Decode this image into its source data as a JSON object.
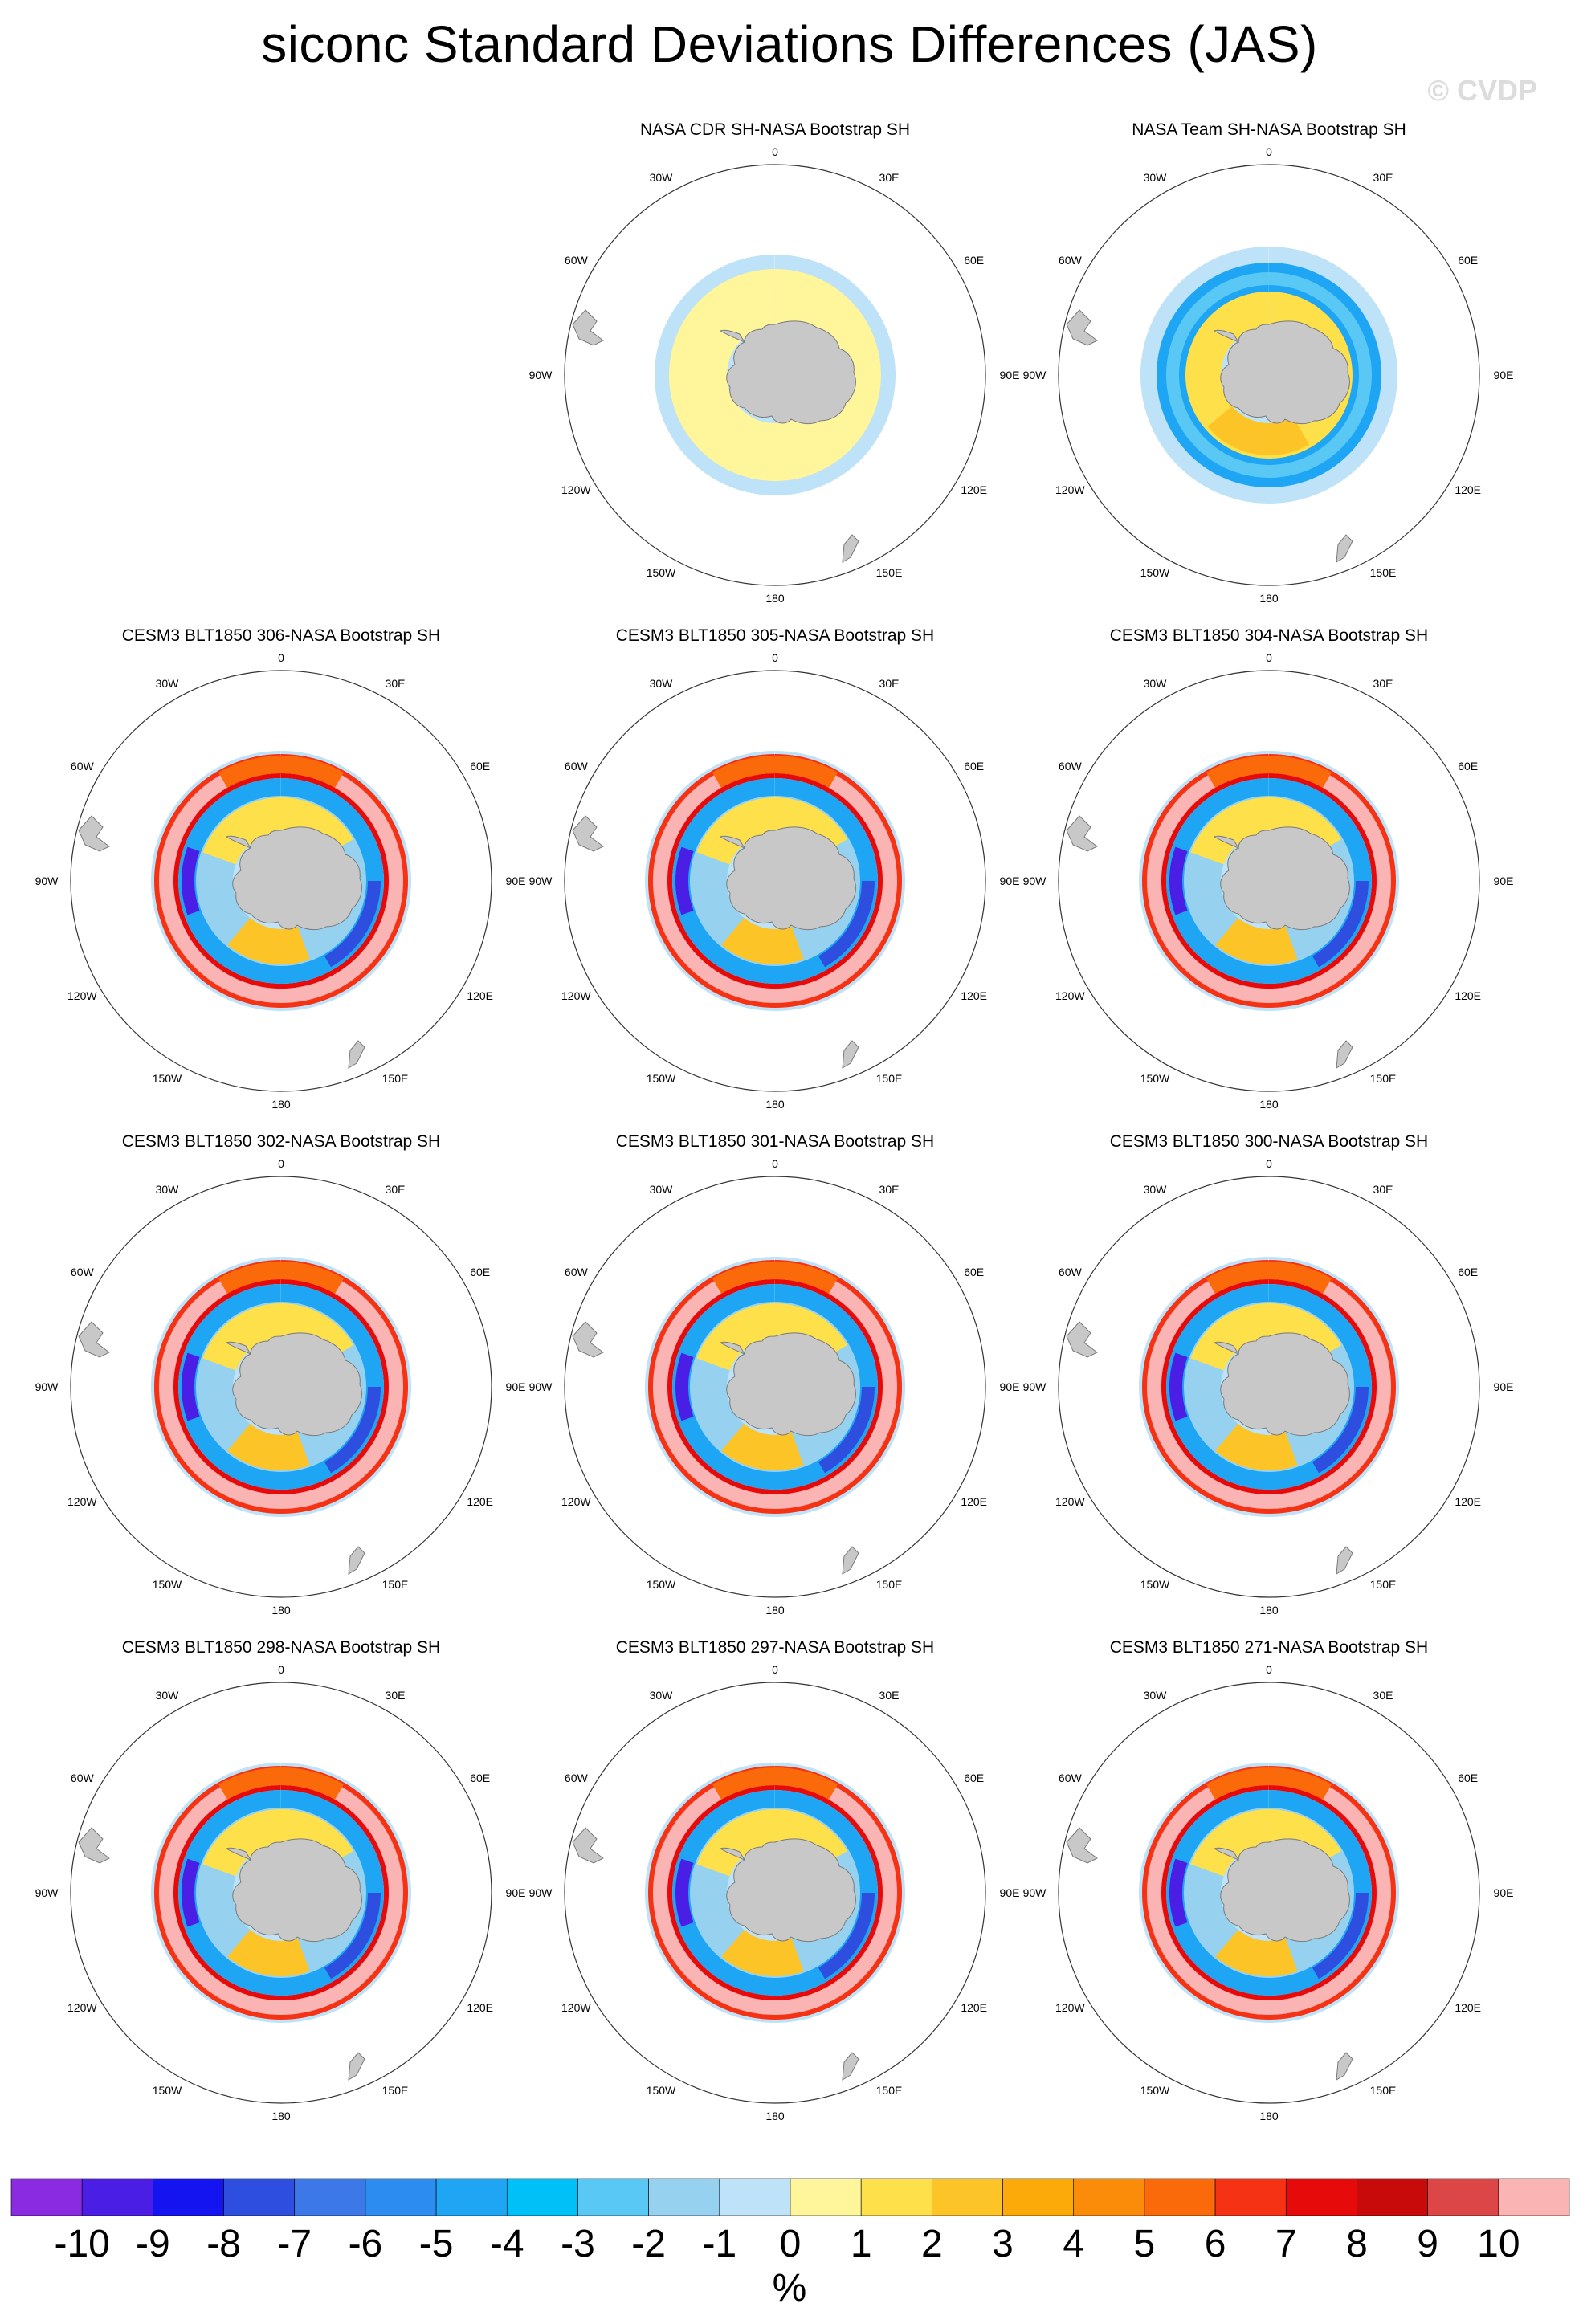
{
  "title": "siconc Standard Deviations Differences (JAS)",
  "watermark": "© CVDP",
  "longitude_labels": {
    "top": "0",
    "bottom": "180",
    "upper_left": "30W",
    "upper_right": "30E",
    "left_upper": "60W",
    "right_upper": "60E",
    "left": "90W",
    "right": "90E",
    "left_lower": "120W",
    "right_lower": "120E",
    "lower_left": "150W",
    "lower_right": "150E"
  },
  "panels": [
    {
      "title": "NASA CDR SH-NASA Bootstrap SH",
      "pattern": "cdr"
    },
    {
      "title": "NASA Team SH-NASA Bootstrap SH",
      "pattern": "team"
    },
    {
      "title": "CESM3 BLT1850 306-NASA Bootstrap SH",
      "pattern": "model"
    },
    {
      "title": "CESM3 BLT1850 305-NASA Bootstrap SH",
      "pattern": "model"
    },
    {
      "title": "CESM3 BLT1850 304-NASA Bootstrap SH",
      "pattern": "model"
    },
    {
      "title": "CESM3 BLT1850 302-NASA Bootstrap SH",
      "pattern": "model"
    },
    {
      "title": "CESM3 BLT1850 301-NASA Bootstrap SH",
      "pattern": "model"
    },
    {
      "title": "CESM3 BLT1850 300-NASA Bootstrap SH",
      "pattern": "model"
    },
    {
      "title": "CESM3 BLT1850 298-NASA Bootstrap SH",
      "pattern": "model"
    },
    {
      "title": "CESM3 BLT1850 297-NASA Bootstrap SH",
      "pattern": "model"
    },
    {
      "title": "CESM3 BLT1850 271-NASA Bootstrap SH",
      "pattern": "model"
    }
  ],
  "colorbar": {
    "unit": "%",
    "tick_labels": [
      "-10",
      "-9",
      "-8",
      "-7",
      "-6",
      "-5",
      "-4",
      "-3",
      "-2",
      "-1",
      "0",
      "1",
      "2",
      "3",
      "4",
      "5",
      "6",
      "7",
      "8",
      "9",
      "10"
    ],
    "colors": [
      "#8a2be2",
      "#4b1ee6",
      "#1414f0",
      "#2e4ee0",
      "#3c78e8",
      "#2d8cf0",
      "#1ea6f5",
      "#00c0f8",
      "#5ac8f5",
      "#96d2f0",
      "#bee2f7",
      "#fff59a",
      "#fde04a",
      "#fcc426",
      "#fbaa0a",
      "#fb8c0a",
      "#fa6a0a",
      "#f63214",
      "#e60a0a",
      "#c80a0a",
      "#dc4646",
      "#fab4b4"
    ]
  }
}
